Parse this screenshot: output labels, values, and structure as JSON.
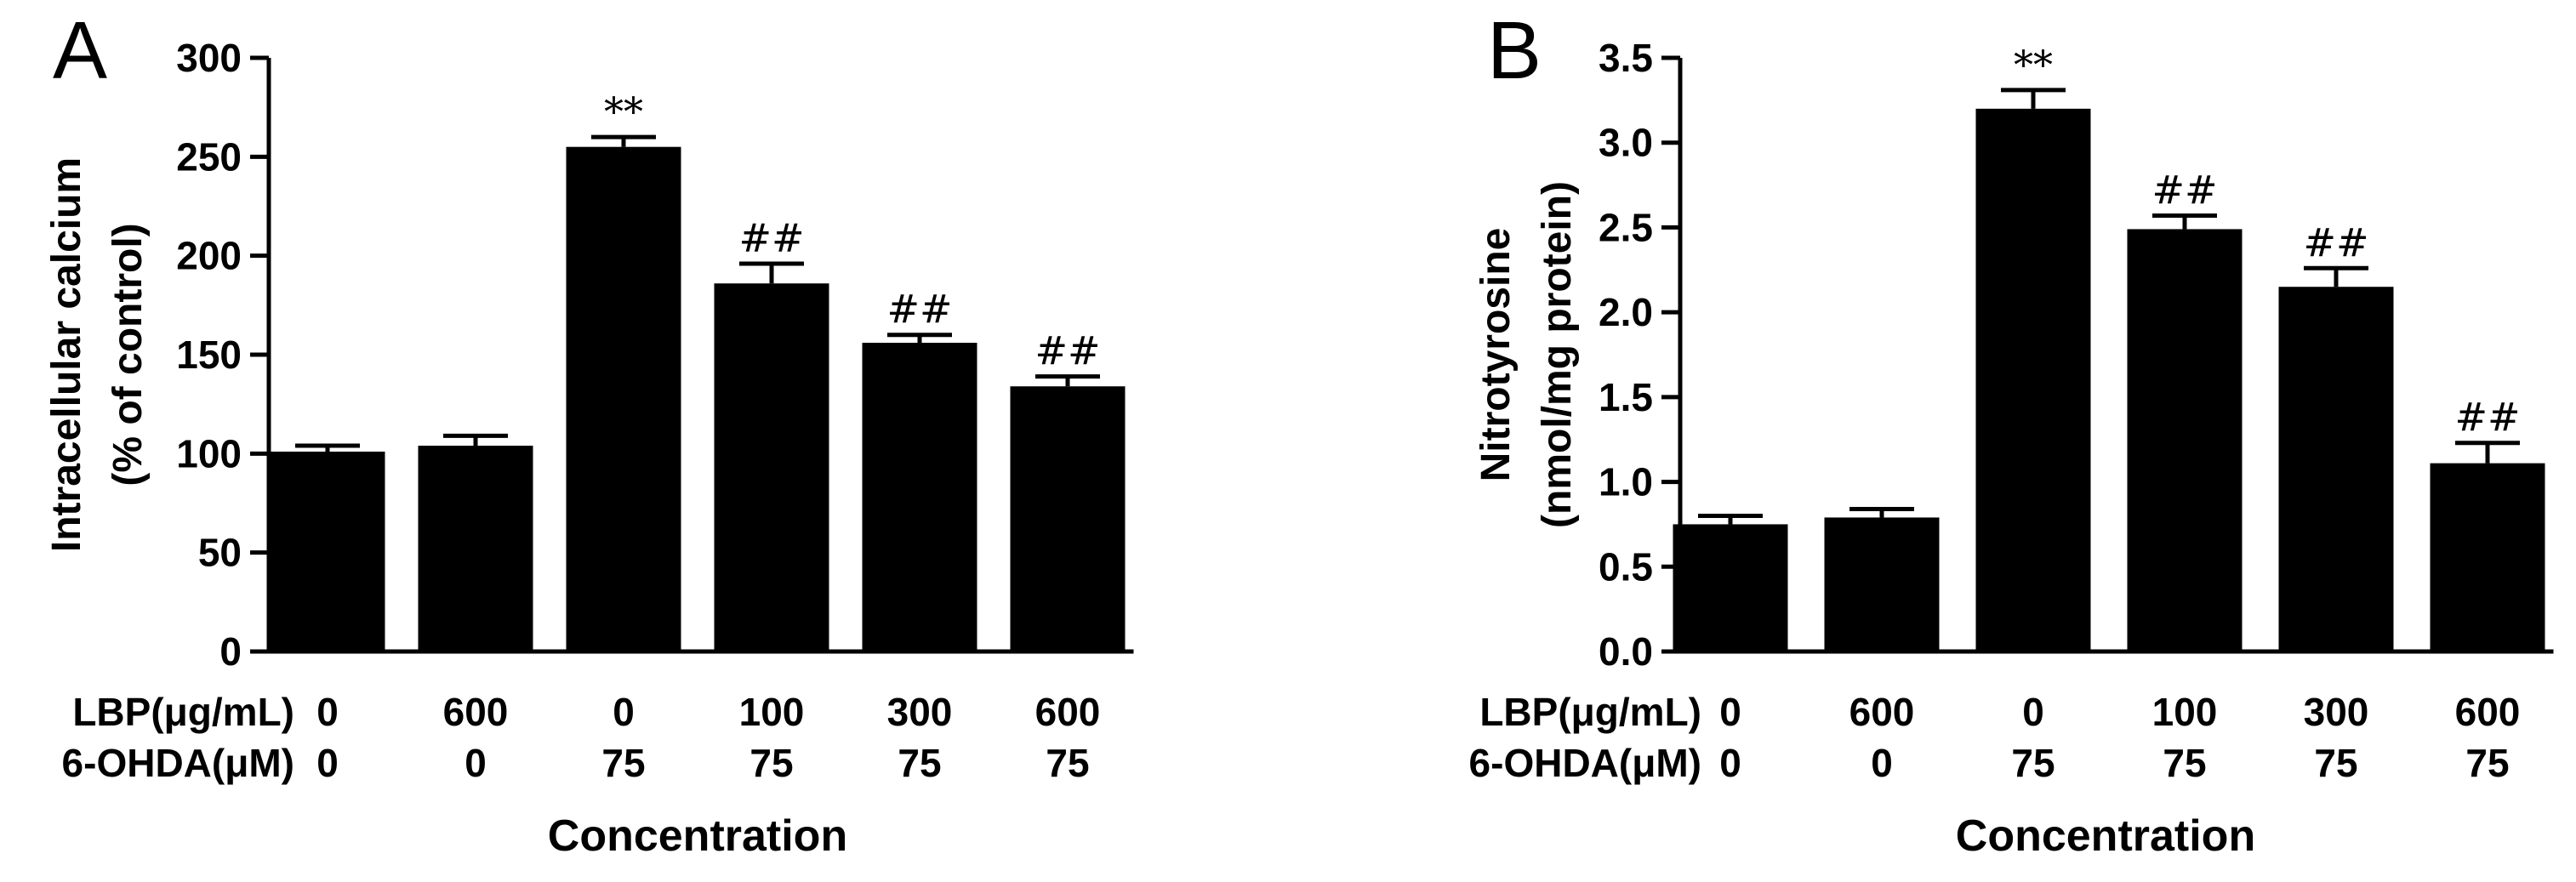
{
  "chart_data": [
    {
      "type": "bar",
      "panel_label": "A",
      "ylabel_lines": [
        "Intracellular calcium",
        "(% of control)"
      ],
      "xlabel": "Concentration",
      "ylim": [
        0,
        300
      ],
      "yticks": [
        "0",
        "50",
        "100",
        "150",
        "200",
        "250",
        "300"
      ],
      "ytick_values": [
        0,
        50,
        100,
        150,
        200,
        250,
        300
      ],
      "values": [
        101,
        104,
        255,
        186,
        156,
        134
      ],
      "errors": [
        3,
        5,
        5,
        10,
        4,
        5
      ],
      "annotations": [
        "",
        "",
        "**",
        "##",
        "##",
        "##"
      ],
      "condition_rows": [
        {
          "label": "LBP(μg/mL)",
          "values": [
            "0",
            "600",
            "0",
            "100",
            "300",
            "600"
          ]
        },
        {
          "label": "6-OHDA(μM)",
          "values": [
            "0",
            "0",
            "75",
            "75",
            "75",
            "75"
          ]
        }
      ],
      "colors": {
        "bar": "#000000"
      }
    },
    {
      "type": "bar",
      "panel_label": "B",
      "ylabel_lines": [
        "Nitrotyrosine",
        "(nmol/mg protein)"
      ],
      "xlabel": "Concentration",
      "ylim": [
        0,
        3.5
      ],
      "yticks": [
        "0.0",
        "0.5",
        "1.0",
        "1.5",
        "2.0",
        "2.5",
        "3.0",
        "3.5"
      ],
      "ytick_values": [
        0,
        0.5,
        1.0,
        1.5,
        2.0,
        2.5,
        3.0,
        3.5
      ],
      "values": [
        0.75,
        0.79,
        3.2,
        2.49,
        2.15,
        1.11
      ],
      "errors": [
        0.05,
        0.05,
        0.11,
        0.08,
        0.11,
        0.12
      ],
      "annotations": [
        "",
        "",
        "**",
        "##",
        "##",
        "##"
      ],
      "condition_rows": [
        {
          "label": "LBP(μg/mL)",
          "values": [
            "0",
            "600",
            "0",
            "100",
            "300",
            "600"
          ]
        },
        {
          "label": "6-OHDA(μM)",
          "values": [
            "0",
            "0",
            "75",
            "75",
            "75",
            "75"
          ]
        }
      ],
      "colors": {
        "bar": "#000000"
      }
    }
  ]
}
